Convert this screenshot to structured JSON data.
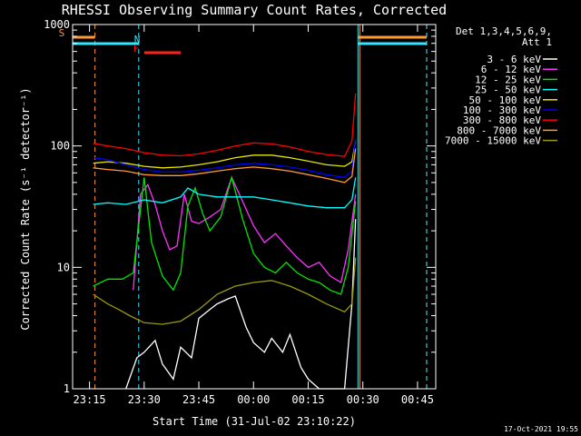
{
  "chart_data": {
    "type": "line",
    "title": "RHESSI Observing Summary Count Rates, Corrected",
    "xlabel": "Start Time (31-Jul-02 23:10:22)",
    "ylabel": "Corrected Count Rate (s⁻¹ detector⁻¹)",
    "y_scale": "log",
    "ylim": [
      1,
      1000
    ],
    "xlim": [
      "23:10:22",
      "00:50:00"
    ],
    "x_ticks": [
      "23:15",
      "23:30",
      "23:45",
      "00:00",
      "00:15",
      "00:30",
      "00:45"
    ],
    "y_ticks": [
      "1",
      "10",
      "100",
      "1000"
    ],
    "legend_header": [
      "Det 1,3,4,5,6,9,",
      "Att 1"
    ],
    "legend_position": "right",
    "stamp": "17-Oct-2021 19:55",
    "flags": [
      {
        "label": "S",
        "color": "#ff9933",
        "start": "23:10:22",
        "end": "23:16:30",
        "start2": "00:28:40",
        "end2": "00:47:30"
      },
      {
        "label": "N",
        "color": "#33e6ff",
        "start": "23:10:22",
        "end": "23:28:30",
        "start2": "00:28:40",
        "end2": "00:47:30"
      },
      {
        "label": "F",
        "color": "#ff2020",
        "start": "23:30:00",
        "end": "23:40:00"
      }
    ],
    "series": [
      {
        "name": "3 - 6 keV",
        "color": "#ffffff",
        "x": [
          "23:25",
          "23:28",
          "23:30",
          "23:33",
          "23:35",
          "23:38",
          "23:40",
          "23:43",
          "23:45",
          "23:48",
          "23:50",
          "23:53",
          "23:55",
          "23:58",
          "00:00",
          "00:03",
          "00:05",
          "00:08",
          "00:10",
          "00:13",
          "00:15",
          "00:18",
          "00:20",
          "00:23",
          "00:25",
          "00:27",
          "00:28"
        ],
        "y": [
          1.0,
          1.8,
          2.0,
          2.5,
          1.6,
          1.2,
          2.2,
          1.8,
          3.8,
          4.5,
          5.0,
          5.5,
          5.8,
          3.2,
          2.4,
          2.0,
          2.6,
          2.0,
          2.8,
          1.5,
          1.2,
          1.0,
          1.0,
          1.0,
          1.0,
          5.0,
          25.0
        ]
      },
      {
        "name": "6 - 12 keV",
        "color": "#ff33ff",
        "x": [
          "23:27",
          "23:29",
          "23:31",
          "23:33",
          "23:35",
          "23:37",
          "23:39",
          "23:41",
          "23:43",
          "23:45",
          "23:48",
          "23:51",
          "23:54",
          "23:57",
          "00:00",
          "00:03",
          "00:06",
          "00:09",
          "00:12",
          "00:15",
          "00:18",
          "00:21",
          "00:24",
          "00:26",
          "00:28"
        ],
        "y": [
          6.5,
          40.0,
          48.0,
          33.0,
          20.0,
          14.0,
          15.0,
          40.0,
          24.0,
          23.0,
          26.0,
          30.0,
          55.0,
          35.0,
          22.0,
          16.0,
          19.0,
          15.0,
          12.0,
          10.0,
          11.0,
          8.5,
          7.5,
          14.0,
          40.0
        ]
      },
      {
        "name": "12 - 25 keV",
        "color": "#00e600",
        "x": [
          "23:16",
          "23:20",
          "23:24",
          "23:27",
          "23:29",
          "23:30",
          "23:32",
          "23:35",
          "23:38",
          "23:40",
          "23:42",
          "23:44",
          "23:46",
          "23:48",
          "23:51",
          "23:54",
          "23:57",
          "00:00",
          "00:03",
          "00:06",
          "00:09",
          "00:12",
          "00:15",
          "00:18",
          "00:21",
          "00:24",
          "00:26",
          "00:28"
        ],
        "y": [
          7.0,
          8.0,
          8.0,
          9.0,
          30.0,
          55.0,
          16.0,
          8.5,
          6.5,
          9.0,
          32.0,
          45.0,
          28.0,
          20.0,
          26.0,
          55.0,
          25.0,
          13.0,
          10.0,
          9.0,
          11.0,
          9.0,
          8.0,
          7.5,
          6.5,
          6.0,
          10.0,
          35.0
        ]
      },
      {
        "name": "25 - 50 keV",
        "color": "#00ffff",
        "x": [
          "23:16",
          "23:20",
          "23:25",
          "23:30",
          "23:35",
          "23:40",
          "23:42",
          "23:45",
          "23:50",
          "23:55",
          "00:00",
          "00:05",
          "00:10",
          "00:15",
          "00:20",
          "00:25",
          "00:27",
          "00:28"
        ],
        "y": [
          33.0,
          34.0,
          33.0,
          36.0,
          34.0,
          38.0,
          45.0,
          40.0,
          38.0,
          38.0,
          38.0,
          36.0,
          34.0,
          32.0,
          31.0,
          31.0,
          36.0,
          55.0
        ]
      },
      {
        "name": "50 - 100 keV",
        "color": "#e6e600",
        "x": [
          "23:16",
          "23:20",
          "23:25",
          "23:30",
          "23:35",
          "23:40",
          "23:45",
          "23:50",
          "23:55",
          "00:00",
          "00:05",
          "00:10",
          "00:15",
          "00:20",
          "00:25",
          "00:27",
          "00:28"
        ],
        "y": [
          72.0,
          74.0,
          72.0,
          68.0,
          66.0,
          67.0,
          70.0,
          74.0,
          80.0,
          84.0,
          84.0,
          80.0,
          75.0,
          70.0,
          68.0,
          74.0,
          110.0
        ]
      },
      {
        "name": "100 - 300 keV",
        "color": "#0000ff",
        "x": [
          "23:16",
          "23:20",
          "23:25",
          "23:30",
          "23:35",
          "23:40",
          "23:45",
          "23:50",
          "23:55",
          "00:00",
          "00:05",
          "00:10",
          "00:15",
          "00:20",
          "00:25",
          "00:27",
          "00:28"
        ],
        "y": [
          80.0,
          77.0,
          70.0,
          64.0,
          61.0,
          61.0,
          63.0,
          66.0,
          70.0,
          72.0,
          70.0,
          67.0,
          63.0,
          58.0,
          55.0,
          62.0,
          115.0
        ]
      },
      {
        "name": "300 - 800 keV",
        "color": "#ff0000",
        "x": [
          "23:16",
          "23:20",
          "23:25",
          "23:30",
          "23:35",
          "23:40",
          "23:45",
          "23:50",
          "23:55",
          "00:00",
          "00:05",
          "00:10",
          "00:15",
          "00:20",
          "00:25",
          "00:27",
          "00:28"
        ],
        "y": [
          105.0,
          100.0,
          95.0,
          88.0,
          84.0,
          83.0,
          86.0,
          92.0,
          100.0,
          106.0,
          104.0,
          98.0,
          90.0,
          85.0,
          82.0,
          110.0,
          270.0
        ]
      },
      {
        "name": "800 - 7000 keV",
        "color": "#ff9933",
        "x": [
          "23:16",
          "23:20",
          "23:25",
          "23:30",
          "23:35",
          "23:40",
          "23:45",
          "23:50",
          "23:55",
          "00:00",
          "00:05",
          "00:10",
          "00:15",
          "00:20",
          "00:25",
          "00:27",
          "00:28"
        ],
        "y": [
          66.0,
          64.0,
          62.0,
          58.0,
          57.0,
          57.0,
          59.0,
          62.0,
          65.0,
          67.0,
          65.0,
          62.0,
          58.0,
          54.0,
          50.0,
          56.0,
          95.0
        ]
      },
      {
        "name": "7000 - 15000 keV",
        "color": "#99990f",
        "x": [
          "23:16",
          "23:20",
          "23:23",
          "23:26",
          "23:30",
          "23:35",
          "23:40",
          "23:45",
          "23:50",
          "23:55",
          "00:00",
          "00:05",
          "00:10",
          "00:15",
          "00:20",
          "00:25",
          "00:27",
          "00:28"
        ],
        "y": [
          6.0,
          5.0,
          4.5,
          4.0,
          3.5,
          3.4,
          3.6,
          4.5,
          6.0,
          7.0,
          7.5,
          7.8,
          7.0,
          6.0,
          5.0,
          4.3,
          5.0,
          12.0
        ]
      }
    ]
  }
}
